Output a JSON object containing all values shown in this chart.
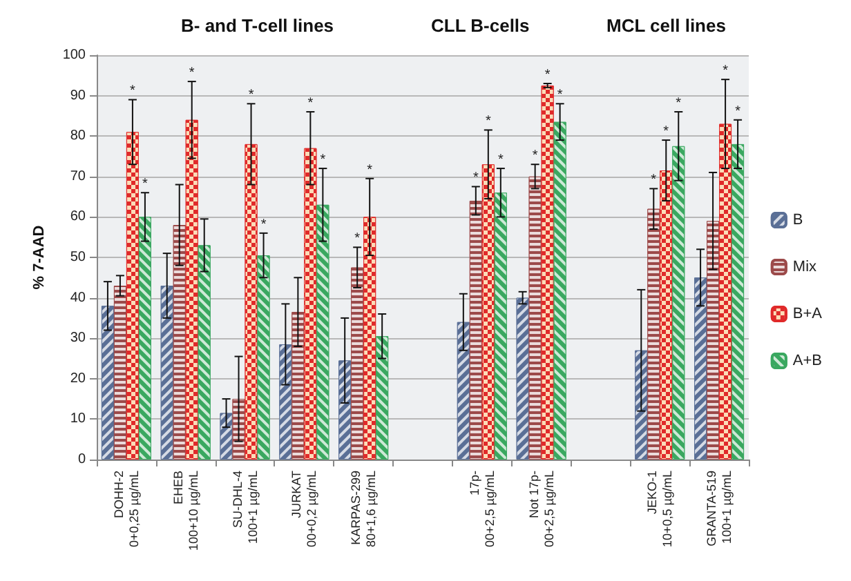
{
  "chart_data": {
    "type": "bar",
    "ylabel": "% 7-AAD",
    "annotations": [
      "B- and T-cell lines",
      "CLL B-cells",
      "MCL cell lines",
      {
        "text": "*",
        "x": "KARPAS-299\n80+1,6 µg/mL",
        "y": 47.5
      },
      {
        "text": "*",
        "x": "17p-\n00+2,5 µg/mL",
        "y": 64
      },
      {
        "text": "*",
        "x": "Not 17p-\n00+2,5 µg/mL",
        "y": 70
      },
      {
        "text": "*",
        "x": "JEKO-1\n10+0,5 µg/mL",
        "y": 62
      },
      {
        "text": "*",
        "x": "DOHH-2\n0+0,25 µg/mL",
        "y": 81
      },
      {
        "text": "*",
        "x": "EHEB\n100+10 µg/mL",
        "y": 84
      },
      {
        "text": "*",
        "x": "SU-DHL-4\n100+1 µg/mL",
        "y": 88
      },
      {
        "text": "*",
        "x": "JURKAT\n00+0,2 µg/mL",
        "y": 86
      },
      {
        "text": "*",
        "x": "KARPAS-299\n80+1,6 µg/mL",
        "y": 60
      },
      {
        "text": "*",
        "x": "17p-\n00+2,5 µg/mL",
        "y": 81.5
      },
      {
        "text": "*",
        "x": "Not 17p-\n00+2,5 µg/mL",
        "y": 92.5
      },
      {
        "text": "*",
        "x": "JEKO-1\n10+0,5 µg/mL",
        "y": 71.5
      },
      {
        "text": "*",
        "x": "GRANTA-519\n100+1 µg/mL",
        "y": 94
      },
      {
        "text": "*",
        "x": "DOHH-2\n0+0,25 µg/mL",
        "y": 60
      },
      {
        "text": "*",
        "x": "SU-DHL-4\n100+1 µg/mL",
        "y": 50.5
      },
      {
        "text": "*",
        "x": "JURKAT\n00+0,2 µg/mL",
        "y": 63
      },
      {
        "text": "*",
        "x": "17p-\n00+2,5 µg/mL",
        "y": 66
      },
      {
        "text": "*",
        "x": "Not 17p-\n00+2,5 µg/mL",
        "y": 83.5
      },
      {
        "text": "*",
        "x": "JEKO-1\n10+0,5 µg/mL",
        "y": 77.5
      },
      {
        "text": "*",
        "x": "GRANTA-519\n100+1 µg/mL",
        "y": 78
      }
    ],
    "categories": [
      "DOHH-2\n0+0,25 µg/mL",
      "EHEB\n100+10 µg/mL",
      "SU-DHL-4\n100+1 µg/mL",
      "JURKAT\n00+0,2 µg/mL",
      "KARPAS-299\n80+1,6 µg/mL",
      null,
      "17p-\n00+2,5 µg/mL",
      "Not 17p-\n00+2,5 µg/mL",
      null,
      "JEKO-1\n10+0,5 µg/mL",
      "GRANTA-519\n100+1 µg/mL"
    ],
    "series": [
      {
        "name": "B",
        "color": "#5a6f96",
        "values": [
          38,
          43,
          11.5,
          28.5,
          24.5,
          null,
          34,
          40,
          null,
          27,
          45
        ],
        "errors": [
          6,
          8,
          3.5,
          10,
          10.5,
          null,
          7,
          1.5,
          null,
          15,
          7
        ]
      },
      {
        "name": "Mix",
        "color": "#9c4a4a",
        "values": [
          43,
          58,
          15,
          36.5,
          47.5,
          null,
          64,
          70,
          null,
          62,
          59
        ],
        "errors": [
          2.5,
          10,
          10.5,
          8.5,
          5,
          null,
          3.5,
          3,
          null,
          5,
          12
        ]
      },
      {
        "name": "B+A",
        "color": "#e02a2a",
        "values": [
          81,
          84,
          78,
          77,
          60,
          null,
          73,
          92.5,
          null,
          71.5,
          83
        ],
        "errors": [
          8,
          9.5,
          10,
          9,
          9.5,
          null,
          8.5,
          0.5,
          null,
          7.5,
          11
        ]
      },
      {
        "name": "A+B",
        "color": "#3aa860",
        "values": [
          60,
          53,
          50.5,
          63,
          30.5,
          null,
          66,
          83.5,
          null,
          77.5,
          78
        ],
        "errors": [
          6,
          6.5,
          5.5,
          9,
          5.5,
          null,
          6,
          4.5,
          null,
          8.5,
          6
        ]
      }
    ],
    "ylim": [
      0,
      100
    ],
    "yticks": [
      0,
      10,
      20,
      30,
      40,
      50,
      60,
      70,
      80,
      90,
      100
    ],
    "grid": "y",
    "legend": "right"
  }
}
